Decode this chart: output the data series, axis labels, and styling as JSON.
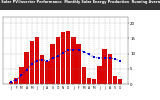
{
  "title": "Solar PV/Inverter Performance  Monthly Solar Energy Production  Running Average",
  "bars": [
    8,
    20,
    55,
    105,
    140,
    155,
    95,
    75,
    130,
    155,
    170,
    175,
    155,
    130,
    55,
    20,
    15,
    60,
    115,
    100,
    25,
    15
  ],
  "running_avg": [
    8,
    14,
    28,
    47,
    66,
    77,
    80,
    76,
    84,
    92,
    102,
    111,
    113,
    113,
    106,
    97,
    88,
    85,
    86,
    86,
    82,
    76
  ],
  "bar_color": "#dd0000",
  "avg_color": "#0000cc",
  "bg_color": "#ffffff",
  "title_bg": "#333333",
  "title_color": "#ffffff",
  "grid_color": "#888888",
  "ylim": [
    0,
    220
  ],
  "ytick_vals": [
    0,
    50,
    100,
    150,
    200
  ],
  "ytick_labels": [
    "0",
    "5",
    "10",
    "15",
    "20"
  ]
}
